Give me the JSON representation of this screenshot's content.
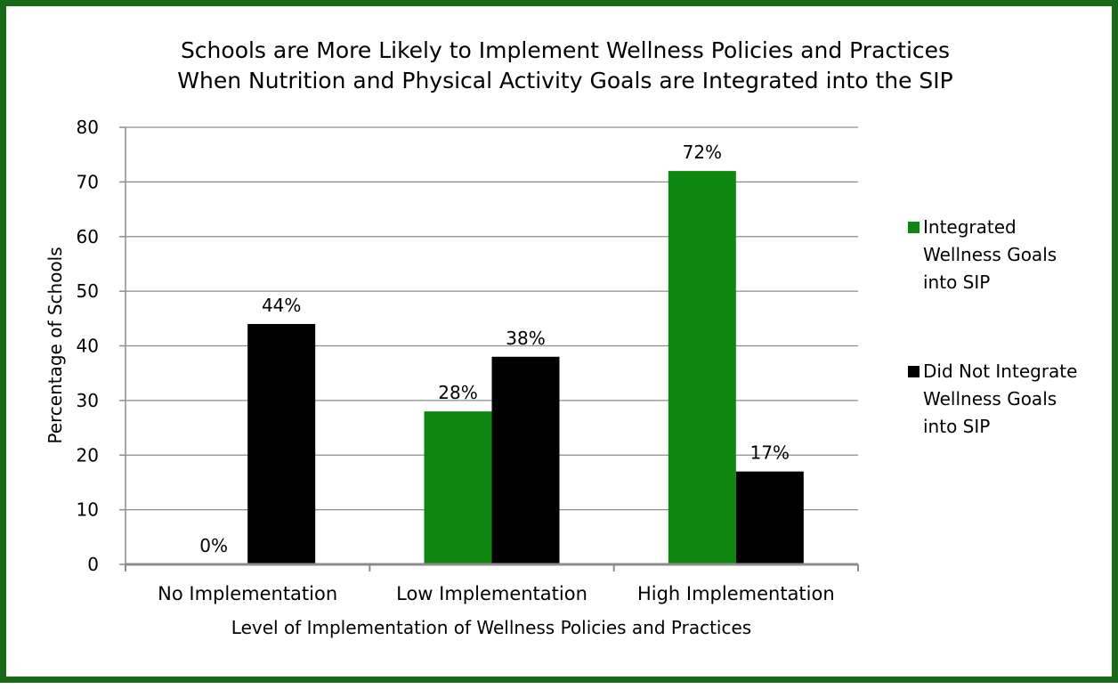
{
  "chart_data": {
    "type": "bar",
    "title": [
      "Schools are More Likely to Implement Wellness Policies and Practices",
      "When Nutrition and Physical Activity Goals are Integrated into the SIP"
    ],
    "xlabel": "Level of Implementation of Wellness Policies and Practices",
    "ylabel": "Percentage of Schools",
    "categories": [
      "No Implementation",
      "Low Implementation",
      "High Implementation"
    ],
    "ylim": [
      0,
      80
    ],
    "yticks": [
      0,
      10,
      20,
      30,
      40,
      50,
      60,
      70,
      80
    ],
    "grid": true,
    "legend_position": "right",
    "series": [
      {
        "name": "Integrated Wellness Goals into SIP",
        "legend_lines": [
          "Integrated",
          "Wellness Goals",
          "into SIP"
        ],
        "color": "#0e870e",
        "values": [
          0,
          28,
          72
        ],
        "labels": [
          "0%",
          "28%",
          "72%"
        ]
      },
      {
        "name": "Did Not Integrate Wellness Goals into SIP",
        "legend_lines": [
          "Did Not Integrate",
          "Wellness Goals",
          "into SIP"
        ],
        "color": "#000000",
        "values": [
          44,
          38,
          17
        ],
        "labels": [
          "44%",
          "38%",
          "17%"
        ]
      }
    ]
  },
  "colors": {
    "frame_border": "#166a16",
    "gridline": "#8c8c8c",
    "axis": "#8c8c8c"
  }
}
